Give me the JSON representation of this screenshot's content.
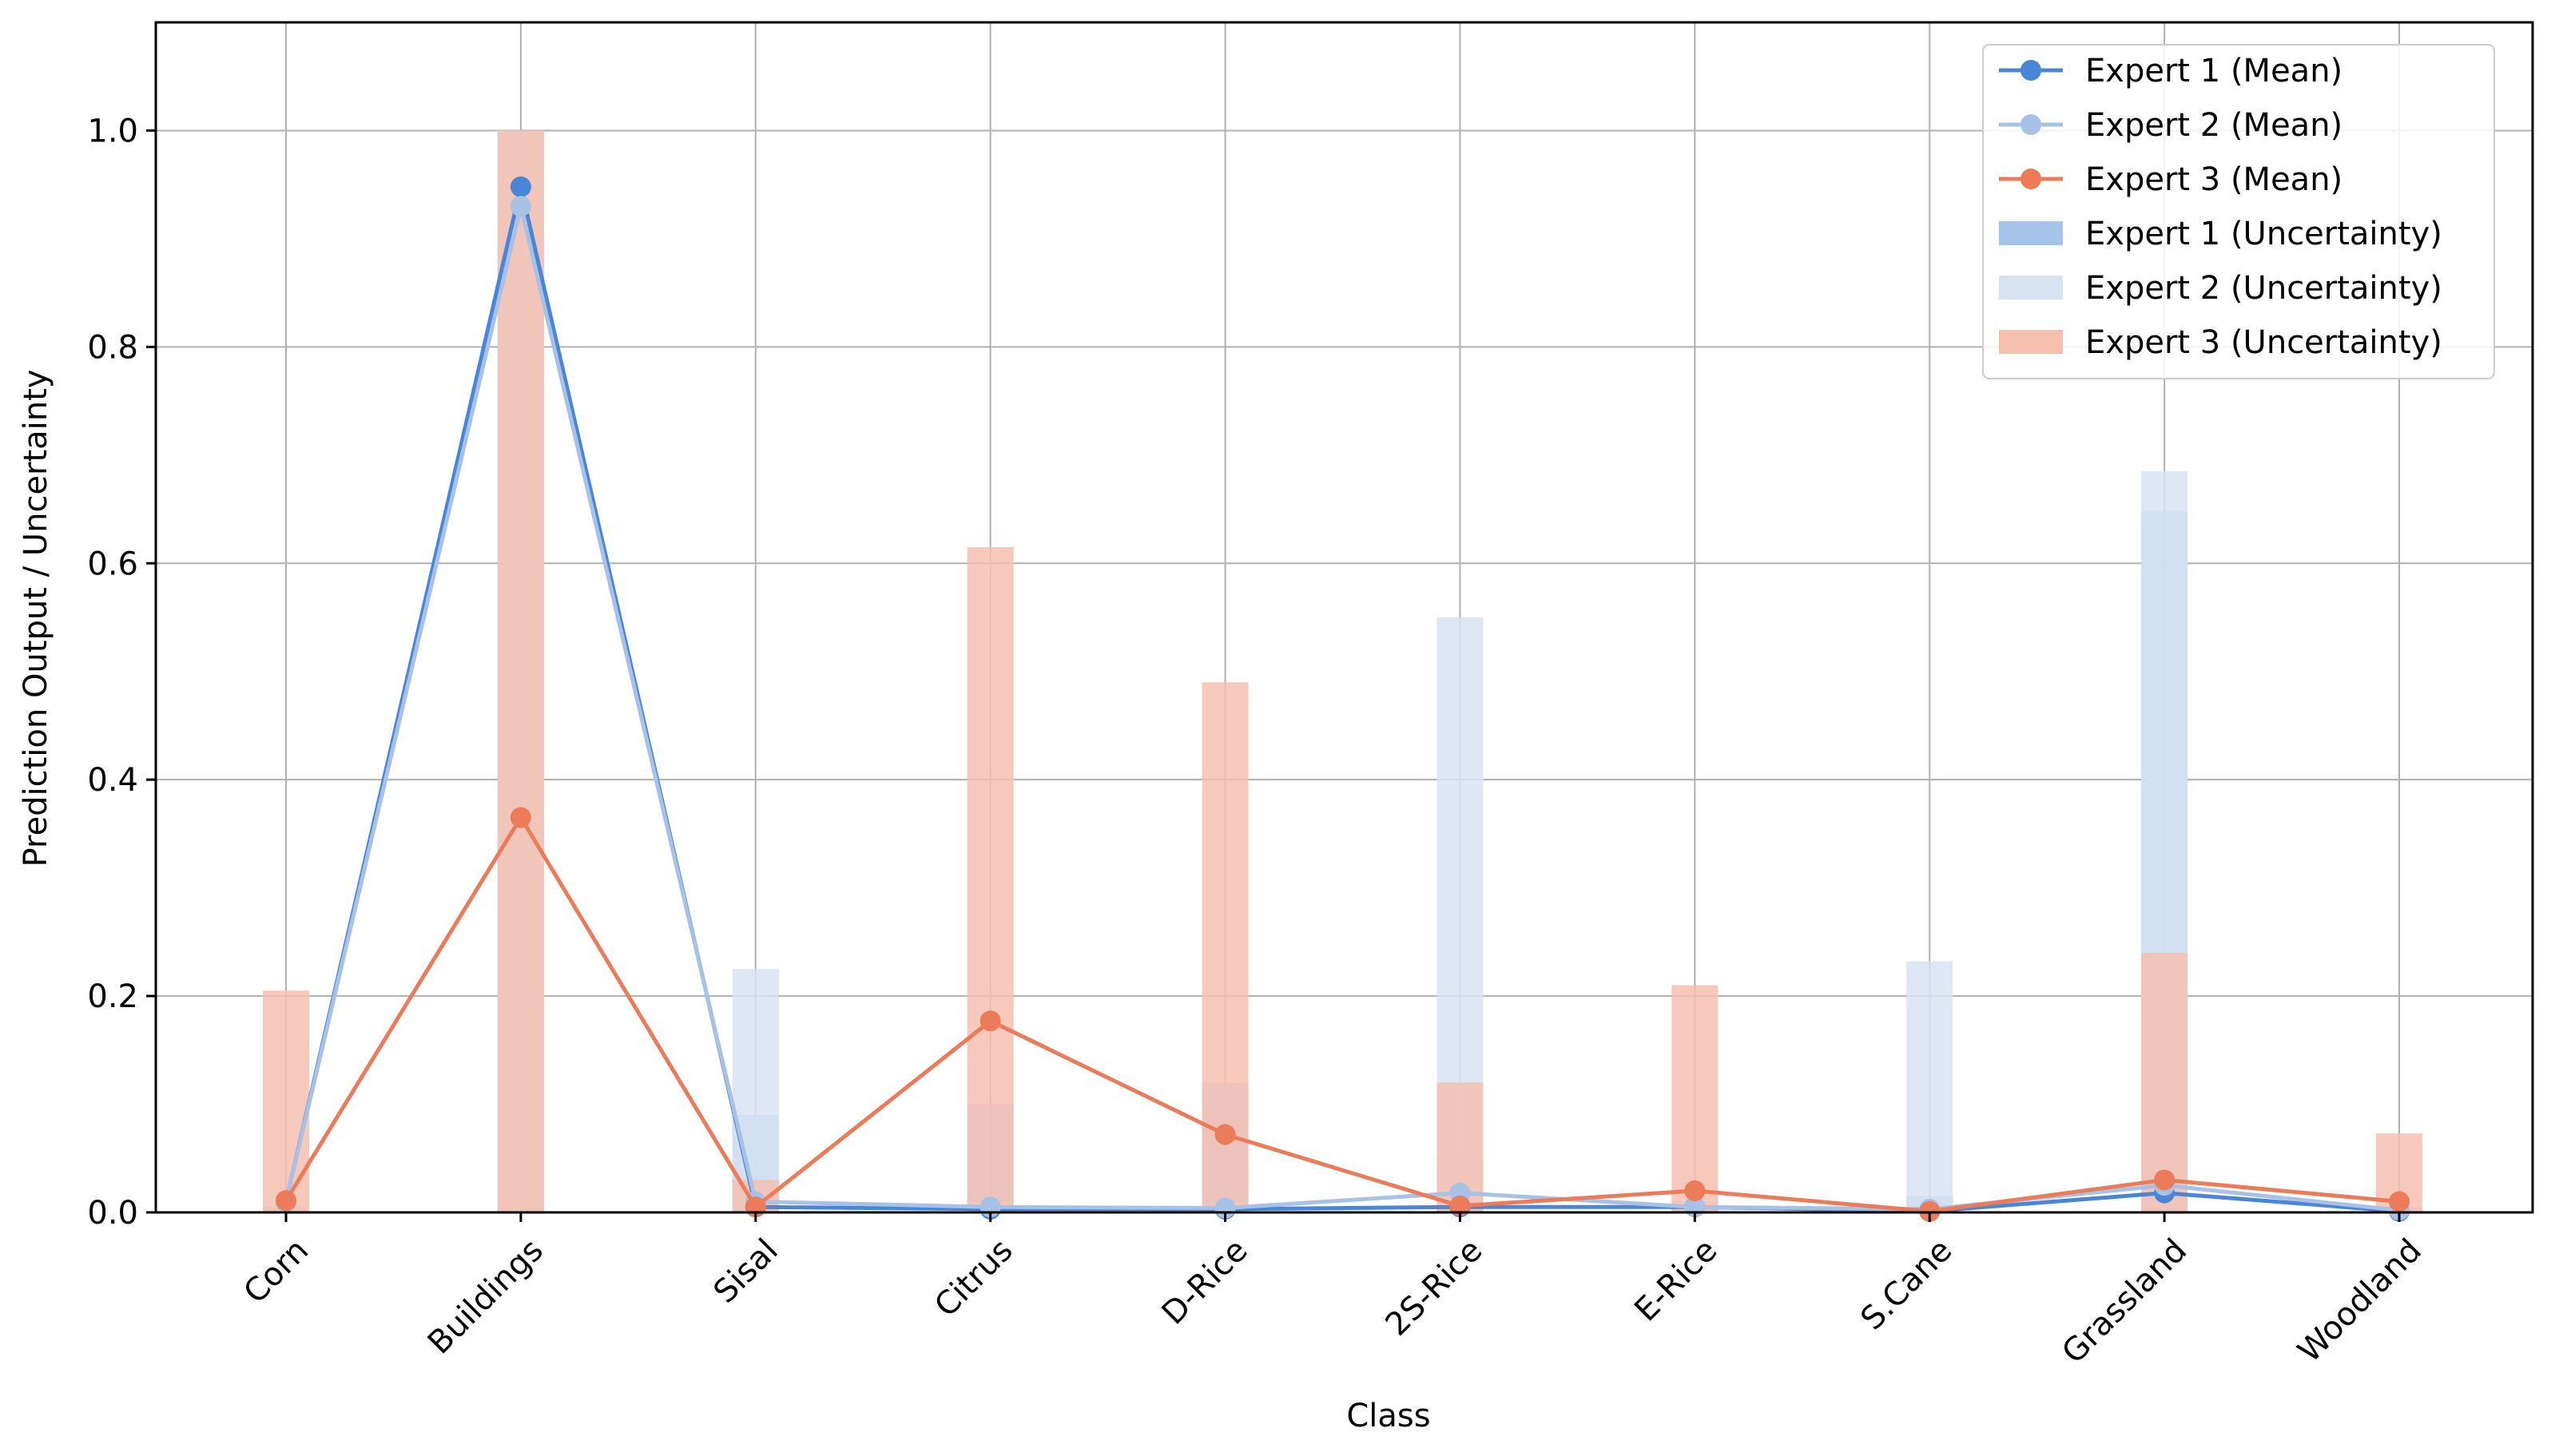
{
  "chart_data": {
    "type": "line",
    "xlabel": "Class",
    "ylabel": "Prediction Output / Uncertainty",
    "categories": [
      "Corn",
      "Buildings",
      "Sisal",
      "Citrus",
      "D-Rice",
      "2S-Rice",
      "E-Rice",
      "S.Cane",
      "Grassland",
      "Woodland"
    ],
    "ylim": [
      0,
      1.1
    ],
    "yticks": [
      "0.0",
      "0.2",
      "0.4",
      "0.6",
      "0.8",
      "1.0"
    ],
    "grid": true,
    "legend_position": "upper right",
    "series": [
      {
        "name": "Expert 1 (Mean)",
        "kind": "line",
        "color": "#4a86d8",
        "values": [
          0.01,
          0.948,
          0.005,
          0.003,
          0.003,
          0.005,
          0.005,
          0.001,
          0.018,
          0.001
        ]
      },
      {
        "name": "Expert 2 (Mean)",
        "kind": "line",
        "color": "#a7c2e6",
        "values": [
          0.01,
          0.93,
          0.01,
          0.005,
          0.004,
          0.018,
          0.005,
          0.003,
          0.025,
          0.002
        ]
      },
      {
        "name": "Expert 3 (Mean)",
        "kind": "line",
        "color": "#ec7b5a",
        "values": [
          0.011,
          0.365,
          0.005,
          0.177,
          0.072,
          0.006,
          0.02,
          0.001,
          0.03,
          0.01
        ]
      },
      {
        "name": "Expert 1 (Uncertainty)",
        "kind": "bar",
        "color": "#a6c4ea",
        "values": [
          0.005,
          1.0,
          0.09,
          0.1,
          0.12,
          0.05,
          0.01,
          0.015,
          0.648,
          0.005
        ]
      },
      {
        "name": "Expert 2 (Uncertainty)",
        "kind": "bar",
        "color": "#d8e3f1",
        "values": [
          0.005,
          1.0,
          0.225,
          0.01,
          0.01,
          0.55,
          0.01,
          0.232,
          0.685,
          0.005
        ]
      },
      {
        "name": "Expert 3 (Uncertainty)",
        "kind": "bar",
        "color": "#f6c0b0",
        "values": [
          0.205,
          1.0,
          0.03,
          0.615,
          0.49,
          0.12,
          0.21,
          0.005,
          0.24,
          0.073
        ]
      }
    ]
  }
}
